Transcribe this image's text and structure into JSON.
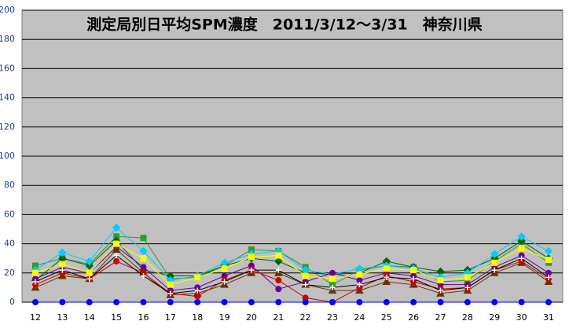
{
  "chart_data": {
    "type": "line",
    "title": "測定局別日平均SPM濃度　2011/3/12～3/31　神奈川県",
    "categories": [
      "12",
      "13",
      "14",
      "15",
      "16",
      "17",
      "18",
      "19",
      "20",
      "21",
      "22",
      "23",
      "24",
      "25",
      "26",
      "27",
      "28",
      "29",
      "30",
      "31"
    ],
    "ylim": [
      0,
      200
    ],
    "yticks": [
      0,
      20,
      40,
      60,
      80,
      100,
      120,
      140,
      160,
      180,
      200
    ],
    "grid": true,
    "series": [
      {
        "color": "#339933",
        "marker": "square",
        "values": [
          25,
          30,
          26,
          45,
          44,
          16,
          17,
          25,
          36,
          35,
          24,
          12,
          22,
          25,
          24,
          14,
          15,
          28,
          40,
          27
        ]
      },
      {
        "color": "#006600",
        "marker": "diamond",
        "values": [
          15,
          30,
          25,
          42,
          22,
          18,
          18,
          25,
          30,
          28,
          20,
          19,
          20,
          28,
          24,
          21,
          22,
          30,
          42,
          30
        ]
      },
      {
        "color": "#00ccff",
        "marker": "diamond",
        "values": [
          22,
          34,
          28,
          51,
          35,
          15,
          18,
          27,
          33,
          35,
          22,
          19,
          23,
          25,
          23,
          17,
          20,
          33,
          45,
          35
        ]
      },
      {
        "color": "#660099",
        "marker": "circle",
        "values": [
          16,
          24,
          20,
          38,
          24,
          8,
          10,
          18,
          25,
          9,
          14,
          20,
          15,
          20,
          18,
          12,
          12,
          24,
          32,
          20
        ]
      },
      {
        "color": "#663300",
        "marker": "triangle",
        "values": [
          10,
          18,
          16,
          36,
          20,
          5,
          6,
          12,
          20,
          20,
          12,
          8,
          8,
          14,
          12,
          6,
          8,
          20,
          27,
          14
        ]
      },
      {
        "color": "#cc0000",
        "marker": "circle",
        "values": [
          12,
          20,
          16,
          28,
          20,
          6,
          4,
          15,
          22,
          15,
          3,
          0,
          10,
          18,
          14,
          9,
          10,
          22,
          28,
          16
        ]
      },
      {
        "color": "#000000",
        "marker": "cross",
        "values": [
          14,
          22,
          16,
          32,
          18,
          6,
          8,
          14,
          22,
          22,
          12,
          10,
          12,
          17,
          16,
          8,
          10,
          22,
          30,
          17
        ]
      },
      {
        "color": "#ffff00",
        "marker": "square",
        "values": [
          20,
          26,
          20,
          40,
          30,
          12,
          17,
          23,
          31,
          32,
          18,
          16,
          19,
          23,
          22,
          15,
          17,
          27,
          37,
          29
        ]
      },
      {
        "color": "#0000ff",
        "marker": "circle",
        "values": [
          0,
          0,
          0,
          0,
          0,
          0,
          0,
          0,
          0,
          0,
          0,
          0,
          0,
          0,
          0,
          0,
          0,
          0,
          0,
          0
        ]
      }
    ]
  }
}
